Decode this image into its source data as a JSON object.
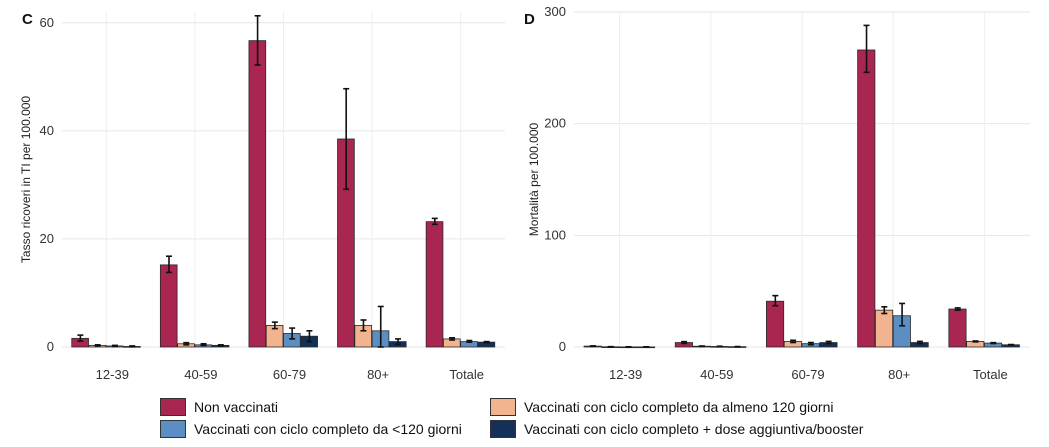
{
  "legend": {
    "items": [
      {
        "label": "Non vaccinati",
        "color": "#a8264f"
      },
      {
        "label": "Vaccinati con ciclo completo da almeno 120 giorni",
        "color": "#f2b48f"
      },
      {
        "label": "Vaccinati con ciclo completo da <120 giorni",
        "color": "#5b8ec3"
      },
      {
        "label": "Vaccinati con ciclo completo + dose aggiuntiva/booster",
        "color": "#13305a"
      }
    ]
  },
  "chart_data": [
    {
      "panel": "C",
      "type": "bar",
      "ylabel": "Tasso ricoveri in TI per 100.000",
      "xlabel": "",
      "ylim": [
        0,
        62
      ],
      "yticks": [
        0,
        20,
        40,
        60
      ],
      "grid": true,
      "categories": [
        "12-39",
        "40-59",
        "60-79",
        "80+",
        "Totale"
      ],
      "series": [
        {
          "name": "Non vaccinati",
          "values": [
            1.6,
            15.2,
            56.7,
            38.5,
            23.2
          ],
          "err_low": [
            1.1,
            13.8,
            52.2,
            29.2,
            22.7
          ],
          "err_high": [
            2.2,
            16.8,
            61.3,
            47.8,
            23.8
          ]
        },
        {
          "name": "Vaccinati con ciclo completo da almeno 120 giorni",
          "values": [
            0.3,
            0.6,
            4.0,
            4.0,
            1.5
          ],
          "err_low": [
            0.2,
            0.4,
            3.4,
            3.0,
            1.3
          ],
          "err_high": [
            0.4,
            0.8,
            4.6,
            5.0,
            1.7
          ]
        },
        {
          "name": "Vaccinati con ciclo completo da <120 giorni",
          "values": [
            0.2,
            0.4,
            2.5,
            3.0,
            1.0
          ],
          "err_low": [
            0.1,
            0.3,
            1.5,
            0.0,
            0.9
          ],
          "err_high": [
            0.3,
            0.6,
            3.5,
            7.5,
            1.2
          ]
        },
        {
          "name": "Vaccinati con ciclo completo + dose aggiuntiva/booster",
          "values": [
            0.1,
            0.3,
            2.0,
            1.0,
            0.9
          ],
          "err_low": [
            0.05,
            0.2,
            1.0,
            0.5,
            0.8
          ],
          "err_high": [
            0.2,
            0.4,
            3.0,
            1.5,
            1.0
          ]
        }
      ]
    },
    {
      "panel": "D",
      "type": "bar",
      "ylabel": "Mortalità per 100.000",
      "xlabel": "",
      "ylim": [
        0,
        300
      ],
      "yticks": [
        0,
        100,
        200,
        300
      ],
      "grid": true,
      "categories": [
        "12-39",
        "40-59",
        "60-79",
        "80+",
        "Totale"
      ],
      "series": [
        {
          "name": "Non vaccinati",
          "values": [
            0.8,
            4.0,
            41.0,
            266.0,
            34.0
          ],
          "err_low": [
            0.6,
            3.2,
            37.0,
            246.0,
            33.0
          ],
          "err_high": [
            1.0,
            4.8,
            46.0,
            288.0,
            35.0
          ]
        },
        {
          "name": "Vaccinati con ciclo completo da almeno 120 giorni",
          "values": [
            0.2,
            0.7,
            5.0,
            33.0,
            5.0
          ],
          "err_low": [
            0.1,
            0.5,
            4.0,
            30.0,
            4.6
          ],
          "err_high": [
            0.3,
            0.9,
            6.0,
            36.0,
            5.4
          ]
        },
        {
          "name": "Vaccinati con ciclo completo da <120 giorni",
          "values": [
            0.1,
            0.5,
            3.0,
            28.0,
            3.5
          ],
          "err_low": [
            0.05,
            0.3,
            2.0,
            19.0,
            3.1
          ],
          "err_high": [
            0.2,
            0.7,
            4.0,
            39.0,
            3.9
          ]
        },
        {
          "name": "Vaccinati con ciclo completo + dose aggiuntiva/booster",
          "values": [
            0.1,
            0.3,
            4.0,
            4.0,
            2.0
          ],
          "err_low": [
            0.05,
            0.2,
            3.0,
            3.0,
            1.8
          ],
          "err_high": [
            0.15,
            0.4,
            5.0,
            5.0,
            2.2
          ]
        }
      ]
    }
  ]
}
